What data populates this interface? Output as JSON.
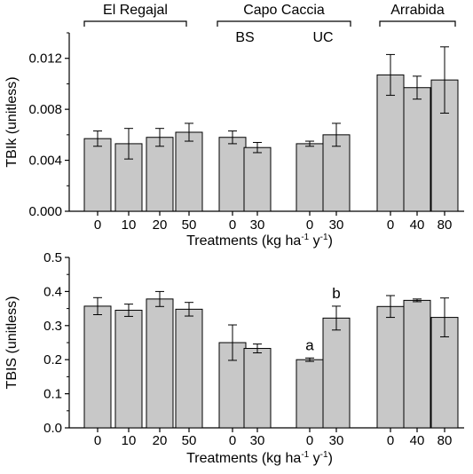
{
  "chart_data": [
    {
      "type": "bar",
      "ylabel": "TBIk (unitless)",
      "xlabel_main": "Treatments (kg ha",
      "xlabel_sup1": "-1",
      "xlabel_mid": " y",
      "xlabel_sup2": "-1",
      "xlabel_end": ")",
      "ylim": [
        0,
        0.014
      ],
      "yticks": [
        "0.000",
        "0.004",
        "0.008",
        "0.012"
      ],
      "groups": [
        {
          "label": "El Regajal",
          "categories": [
            "0",
            "10",
            "20",
            "50"
          ],
          "values": [
            0.0057,
            0.0053,
            0.0058,
            0.0062
          ],
          "errors": [
            0.0006,
            0.0012,
            0.0007,
            0.0007
          ]
        },
        {
          "label": "Capo Caccia",
          "sublabel": "BS",
          "categories": [
            "0",
            "30"
          ],
          "values": [
            0.0058,
            0.005
          ],
          "errors": [
            0.0005,
            0.0004
          ]
        },
        {
          "sublabel": "UC",
          "categories": [
            "0",
            "30"
          ],
          "values": [
            0.0053,
            0.006
          ],
          "errors": [
            0.0002,
            0.0009
          ]
        },
        {
          "label": "Arrabida",
          "categories": [
            "0",
            "40",
            "80"
          ],
          "values": [
            0.0107,
            0.0097,
            0.0103
          ],
          "errors": [
            0.0016,
            0.0009,
            0.0026
          ]
        }
      ],
      "annotations": []
    },
    {
      "type": "bar",
      "ylabel": "TBIS (unitless)",
      "xlabel_main": "Treatments (kg ha",
      "xlabel_sup1": "-1",
      "xlabel_mid": " y",
      "xlabel_sup2": "-1",
      "xlabel_end": ")",
      "ylim": [
        0,
        0.5
      ],
      "yticks": [
        "0.0",
        "0.1",
        "0.2",
        "0.3",
        "0.4",
        "0.5"
      ],
      "groups": [
        {
          "categories": [
            "0",
            "10",
            "20",
            "50"
          ],
          "values": [
            0.357,
            0.345,
            0.378,
            0.348
          ],
          "errors": [
            0.025,
            0.018,
            0.022,
            0.02
          ]
        },
        {
          "categories": [
            "0",
            "30"
          ],
          "values": [
            0.25,
            0.233
          ],
          "errors": [
            0.052,
            0.013
          ]
        },
        {
          "categories": [
            "0",
            "30"
          ],
          "values": [
            0.2,
            0.322
          ],
          "errors": [
            0.005,
            0.035
          ]
        },
        {
          "categories": [
            "0",
            "40",
            "80"
          ],
          "values": [
            0.356,
            0.374,
            0.324
          ],
          "errors": [
            0.032,
            0.004,
            0.057
          ]
        }
      ],
      "annotations": [
        {
          "group": 2,
          "bar": 0,
          "text": "a"
        },
        {
          "group": 2,
          "bar": 1,
          "text": "b"
        }
      ]
    }
  ]
}
